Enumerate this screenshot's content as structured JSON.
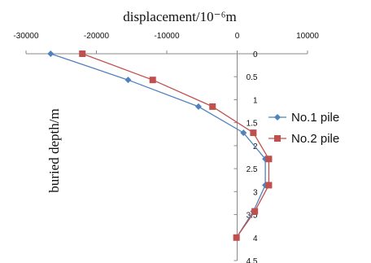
{
  "chart_data": {
    "type": "line",
    "title": "",
    "xlabel": "displacement/10⁻⁶m",
    "ylabel": "buried depth/m",
    "x_axis_position": "top",
    "y_axis_reversed": true,
    "xlim": [
      -30000,
      10000
    ],
    "ylim": [
      0,
      4.5
    ],
    "x_ticks": [
      "-30000",
      "-20000",
      "-10000",
      "0",
      "10000"
    ],
    "y_ticks": [
      "0",
      "0.5",
      "1",
      "1.5",
      "2",
      "2.5",
      "3",
      "3.5",
      "4",
      "4.5"
    ],
    "legend_position": "right",
    "series": [
      {
        "name": "No.1 pile",
        "marker": "diamond",
        "color": "#4f81bd",
        "points": [
          {
            "x": -26500,
            "y": 0
          },
          {
            "x": -15500,
            "y": 0.57
          },
          {
            "x": -5500,
            "y": 1.15
          },
          {
            "x": 900,
            "y": 1.72
          },
          {
            "x": 4000,
            "y": 2.29
          },
          {
            "x": 4000,
            "y": 2.86
          },
          {
            "x": 2300,
            "y": 3.43
          },
          {
            "x": -100,
            "y": 4.0
          }
        ]
      },
      {
        "name": "No.2 pile",
        "marker": "square",
        "color": "#c0504d",
        "points": [
          {
            "x": -22000,
            "y": 0
          },
          {
            "x": -12000,
            "y": 0.57
          },
          {
            "x": -3500,
            "y": 1.15
          },
          {
            "x": 2300,
            "y": 1.72
          },
          {
            "x": 4500,
            "y": 2.29
          },
          {
            "x": 4500,
            "y": 2.86
          },
          {
            "x": 2500,
            "y": 3.43
          },
          {
            "x": -100,
            "y": 4.0
          }
        ]
      }
    ]
  }
}
